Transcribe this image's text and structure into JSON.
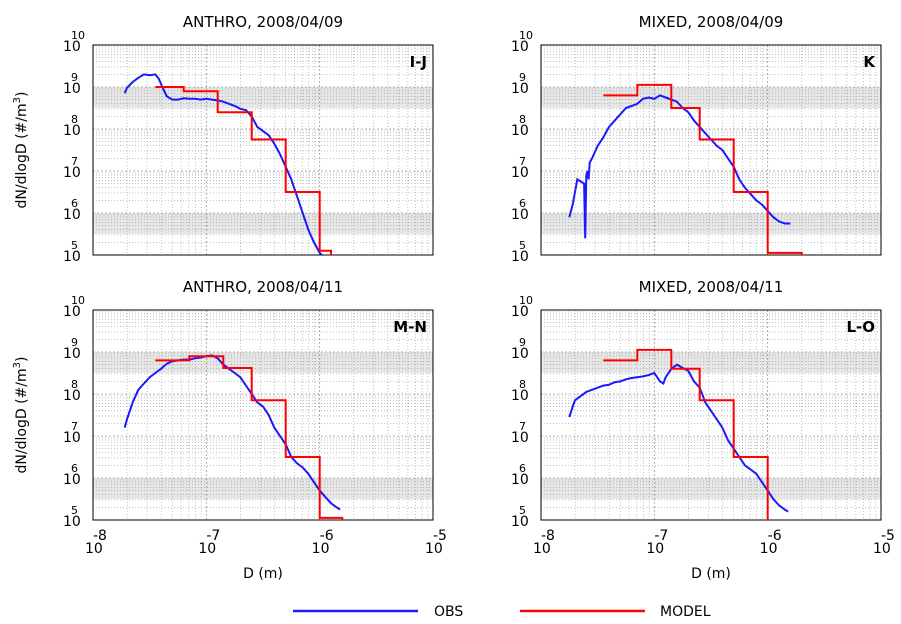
{
  "colors": {
    "obs": "#1a1aff",
    "model": "#ff0000",
    "shade": "#e6e6e6",
    "grid": "#9a9a9a"
  },
  "common": {
    "ylabel": "dN/dlogD (#/m",
    "ylabel_sup": "3",
    "ylabel_end": ")",
    "xlabel": "D (m)",
    "ybase": "10",
    "xbase": "10"
  },
  "legend": [
    {
      "name": "OBS",
      "color": "#1a1aff"
    },
    {
      "name": "MODEL",
      "color": "#ff0000"
    }
  ],
  "chart_data": [
    {
      "type": "line",
      "title": "ANTHRO, 2008/04/09",
      "tag": "I-J",
      "xscale": "log",
      "yscale": "log",
      "xlim_exp": [
        -8,
        -5
      ],
      "ylim_exp": [
        5,
        10
      ],
      "xtick_exp": [
        -8,
        -7,
        -6,
        -5
      ],
      "ytick_exp": [
        10,
        9,
        8,
        7,
        6,
        5
      ],
      "show_xticklabels": false,
      "show_ylabel": true,
      "shaded_y_exp": [
        [
          8.5,
          9.0
        ],
        [
          5.5,
          6.0
        ]
      ],
      "series": [
        {
          "name": "OBS",
          "x_exp": [
            -7.72,
            -7.7,
            -7.65,
            -7.6,
            -7.55,
            -7.5,
            -7.45,
            -7.42,
            -7.38,
            -7.35,
            -7.3,
            -7.25,
            -7.2,
            -7.15,
            -7.1,
            -7.05,
            -7.0,
            -6.95,
            -6.9,
            -6.85,
            -6.8,
            -6.75,
            -6.7,
            -6.65,
            -6.6,
            -6.55,
            -6.5,
            -6.45,
            -6.4,
            -6.35,
            -6.3,
            -6.25,
            -6.2,
            -6.15,
            -6.1,
            -6.05,
            -6.0,
            -5.98
          ],
          "y_exp": [
            8.85,
            8.98,
            9.12,
            9.22,
            9.3,
            9.28,
            9.3,
            9.2,
            8.95,
            8.78,
            8.7,
            8.7,
            8.73,
            8.72,
            8.72,
            8.7,
            8.72,
            8.7,
            8.68,
            8.65,
            8.6,
            8.55,
            8.48,
            8.45,
            8.3,
            8.05,
            7.95,
            7.85,
            7.65,
            7.4,
            7.1,
            6.8,
            6.4,
            6.0,
            5.6,
            5.3,
            5.05,
            5.0
          ]
        },
        {
          "name": "MODEL",
          "step_x_exp": [
            -7.45,
            -7.2,
            -6.9,
            -6.6,
            -6.3,
            -6.0,
            -5.9
          ],
          "step_y_exp": [
            9.0,
            8.9,
            8.4,
            7.75,
            6.5,
            5.1
          ]
        }
      ]
    },
    {
      "type": "line",
      "title": "MIXED, 2008/04/09",
      "tag": "K",
      "xscale": "log",
      "yscale": "log",
      "xlim_exp": [
        -8,
        -5
      ],
      "ylim_exp": [
        5,
        10
      ],
      "xtick_exp": [
        -8,
        -7,
        -6,
        -5
      ],
      "ytick_exp": [
        10,
        9,
        8,
        7,
        6,
        5
      ],
      "show_xticklabels": false,
      "show_ylabel": false,
      "shaded_y_exp": [
        [
          8.5,
          9.0
        ],
        [
          5.5,
          6.0
        ]
      ],
      "series": [
        {
          "name": "OBS",
          "x_exp": [
            -7.75,
            -7.72,
            -7.7,
            -7.68,
            -7.62,
            -7.61,
            -7.6,
            -7.59,
            -7.58,
            -7.57,
            -7.55,
            -7.5,
            -7.45,
            -7.4,
            -7.35,
            -7.3,
            -7.25,
            -7.2,
            -7.15,
            -7.1,
            -7.05,
            -7.0,
            -6.95,
            -6.9,
            -6.85,
            -6.8,
            -6.75,
            -6.7,
            -6.65,
            -6.6,
            -6.55,
            -6.5,
            -6.45,
            -6.4,
            -6.35,
            -6.3,
            -6.25,
            -6.2,
            -6.15,
            -6.1,
            -6.05,
            -6.0,
            -5.95,
            -5.9,
            -5.85,
            -5.8
          ],
          "y_exp": [
            5.9,
            6.2,
            6.5,
            6.8,
            6.7,
            5.4,
            6.9,
            7.0,
            6.8,
            7.2,
            7.3,
            7.6,
            7.8,
            8.05,
            8.2,
            8.35,
            8.5,
            8.55,
            8.6,
            8.72,
            8.75,
            8.72,
            8.8,
            8.75,
            8.7,
            8.65,
            8.5,
            8.4,
            8.2,
            8.05,
            7.9,
            7.75,
            7.6,
            7.5,
            7.3,
            7.1,
            6.8,
            6.6,
            6.45,
            6.3,
            6.2,
            6.05,
            5.9,
            5.8,
            5.75,
            5.75
          ]
        },
        {
          "name": "MODEL",
          "step_x_exp": [
            -7.45,
            -7.15,
            -6.85,
            -6.6,
            -6.3,
            -6.0,
            -5.7
          ],
          "step_y_exp": [
            8.8,
            9.05,
            8.5,
            7.75,
            6.5,
            5.05
          ]
        }
      ]
    },
    {
      "type": "line",
      "title": "ANTHRO, 2008/04/11",
      "tag": "M-N",
      "xscale": "log",
      "yscale": "log",
      "xlim_exp": [
        -8,
        -5
      ],
      "ylim_exp": [
        5,
        10
      ],
      "xtick_exp": [
        -8,
        -7,
        -6,
        -5
      ],
      "ytick_exp": [
        10,
        9,
        8,
        7,
        6,
        5
      ],
      "show_xticklabels": true,
      "show_ylabel": true,
      "show_xlabel": true,
      "shaded_y_exp": [
        [
          8.5,
          9.0
        ],
        [
          5.5,
          6.0
        ]
      ],
      "series": [
        {
          "name": "OBS",
          "x_exp": [
            -7.72,
            -7.7,
            -7.65,
            -7.6,
            -7.55,
            -7.5,
            -7.45,
            -7.4,
            -7.35,
            -7.3,
            -7.25,
            -7.2,
            -7.15,
            -7.1,
            -7.05,
            -7.0,
            -6.95,
            -6.9,
            -6.85,
            -6.8,
            -6.75,
            -6.7,
            -6.65,
            -6.6,
            -6.55,
            -6.5,
            -6.45,
            -6.4,
            -6.35,
            -6.3,
            -6.25,
            -6.2,
            -6.15,
            -6.1,
            -6.05,
            -6.0,
            -5.95,
            -5.9,
            -5.85,
            -5.82
          ],
          "y_exp": [
            7.2,
            7.4,
            7.8,
            8.1,
            8.25,
            8.4,
            8.5,
            8.6,
            8.72,
            8.78,
            8.8,
            8.82,
            8.82,
            8.85,
            8.87,
            8.9,
            8.92,
            8.85,
            8.7,
            8.6,
            8.5,
            8.4,
            8.2,
            8.0,
            7.8,
            7.7,
            7.5,
            7.2,
            7.0,
            6.8,
            6.5,
            6.35,
            6.25,
            6.1,
            5.9,
            5.7,
            5.55,
            5.4,
            5.3,
            5.25
          ]
        },
        {
          "name": "MODEL",
          "step_x_exp": [
            -7.45,
            -7.15,
            -6.85,
            -6.6,
            -6.3,
            -6.0,
            -5.8
          ],
          "step_y_exp": [
            8.8,
            8.9,
            8.62,
            7.85,
            6.5,
            5.05
          ]
        }
      ]
    },
    {
      "type": "line",
      "title": "MIXED, 2008/04/11",
      "tag": "L-O",
      "xscale": "log",
      "yscale": "log",
      "xlim_exp": [
        -8,
        -5
      ],
      "ylim_exp": [
        5,
        10
      ],
      "xtick_exp": [
        -8,
        -7,
        -6,
        -5
      ],
      "ytick_exp": [
        10,
        9,
        8,
        7,
        6,
        5
      ],
      "show_xticklabels": true,
      "show_ylabel": false,
      "show_xlabel": true,
      "shaded_y_exp": [
        [
          8.5,
          9.0
        ],
        [
          5.5,
          6.0
        ]
      ],
      "series": [
        {
          "name": "OBS",
          "x_exp": [
            -7.75,
            -7.72,
            -7.7,
            -7.65,
            -7.6,
            -7.55,
            -7.5,
            -7.45,
            -7.4,
            -7.35,
            -7.3,
            -7.25,
            -7.2,
            -7.15,
            -7.1,
            -7.05,
            -7.0,
            -6.95,
            -6.92,
            -6.9,
            -6.85,
            -6.8,
            -6.75,
            -6.7,
            -6.65,
            -6.6,
            -6.55,
            -6.5,
            -6.45,
            -6.4,
            -6.35,
            -6.3,
            -6.25,
            -6.2,
            -6.15,
            -6.1,
            -6.05,
            -6.0,
            -5.95,
            -5.9,
            -5.85,
            -5.82
          ],
          "y_exp": [
            7.45,
            7.7,
            7.85,
            7.95,
            8.05,
            8.1,
            8.15,
            8.2,
            8.22,
            8.28,
            8.3,
            8.35,
            8.38,
            8.4,
            8.42,
            8.45,
            8.5,
            8.3,
            8.25,
            8.4,
            8.6,
            8.7,
            8.62,
            8.55,
            8.3,
            8.15,
            7.8,
            7.6,
            7.4,
            7.2,
            6.9,
            6.7,
            6.5,
            6.3,
            6.2,
            6.1,
            5.9,
            5.7,
            5.5,
            5.35,
            5.25,
            5.2
          ]
        },
        {
          "name": "MODEL",
          "step_x_exp": [
            -7.45,
            -7.15,
            -6.85,
            -6.6,
            -6.3,
            -6.0
          ],
          "step_y_exp": [
            8.8,
            9.05,
            8.6,
            7.85,
            6.5
          ]
        }
      ]
    }
  ]
}
